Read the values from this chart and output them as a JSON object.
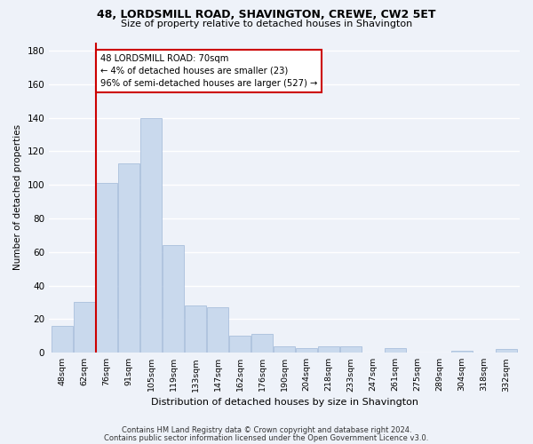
{
  "title": "48, LORDSMILL ROAD, SHAVINGTON, CREWE, CW2 5ET",
  "subtitle": "Size of property relative to detached houses in Shavington",
  "xlabel": "Distribution of detached houses by size in Shavington",
  "ylabel": "Number of detached properties",
  "bar_color": "#c9d9ed",
  "bar_edge_color": "#a0b8d8",
  "categories": [
    "48sqm",
    "62sqm",
    "76sqm",
    "91sqm",
    "105sqm",
    "119sqm",
    "133sqm",
    "147sqm",
    "162sqm",
    "176sqm",
    "190sqm",
    "204sqm",
    "218sqm",
    "233sqm",
    "247sqm",
    "261sqm",
    "275sqm",
    "289sqm",
    "304sqm",
    "318sqm",
    "332sqm"
  ],
  "values": [
    16,
    30,
    101,
    113,
    140,
    64,
    28,
    27,
    10,
    11,
    4,
    3,
    4,
    4,
    0,
    3,
    0,
    0,
    1,
    0,
    2
  ],
  "ylim": [
    0,
    185
  ],
  "yticks": [
    0,
    20,
    40,
    60,
    80,
    100,
    120,
    140,
    160,
    180
  ],
  "property_line_x": 1.5,
  "annotation_title": "48 LORDSMILL ROAD: 70sqm",
  "annotation_line1": "← 4% of detached houses are smaller (23)",
  "annotation_line2": "96% of semi-detached houses are larger (527) →",
  "annotation_box_color": "#ffffff",
  "annotation_box_edge": "#cc0000",
  "vline_color": "#cc0000",
  "footer1": "Contains HM Land Registry data © Crown copyright and database right 2024.",
  "footer2": "Contains public sector information licensed under the Open Government Licence v3.0.",
  "bg_color": "#eef2f9",
  "grid_color": "#ffffff"
}
